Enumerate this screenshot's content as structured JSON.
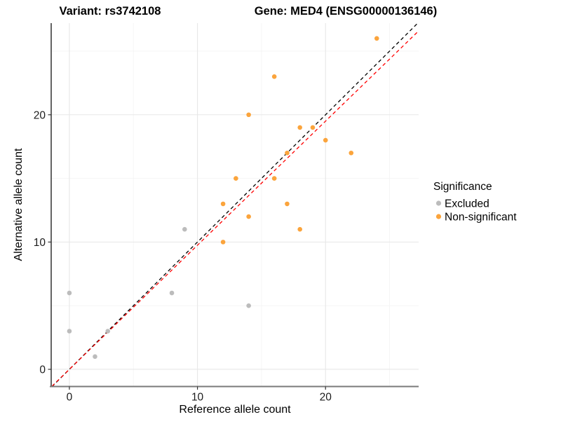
{
  "titles": {
    "variant": "Variant: rs3742108",
    "gene": "Gene: MED4 (ENSG00000136146)"
  },
  "axes": {
    "x_label": "Reference allele count",
    "y_label": "Alternative allele count",
    "x_ticks": [
      0,
      10,
      20
    ],
    "y_ticks": [
      0,
      10,
      20
    ]
  },
  "legend": {
    "title": "Significance",
    "items": [
      {
        "label": "Excluded",
        "color": "#bcbcbc"
      },
      {
        "label": "Non-significant",
        "color": "#fba43c"
      }
    ]
  },
  "chart_data": {
    "type": "scatter",
    "title_left": "Variant: rs3742108",
    "title_right": "Gene: MED4 (ENSG00000136146)",
    "xlabel": "Reference allele count",
    "ylabel": "Alternative allele count",
    "xlim": [
      -1.42,
      27.27
    ],
    "ylim": [
      -1.35,
      27.2
    ],
    "grid": {
      "major": [
        0,
        10,
        20
      ],
      "minor": [
        5,
        15,
        25
      ]
    },
    "point_radius": 3.3,
    "series": [
      {
        "name": "Excluded",
        "color": "#bcbcbc",
        "points": [
          [
            0,
            3
          ],
          [
            0,
            6
          ],
          [
            2,
            1
          ],
          [
            3,
            3
          ],
          [
            8,
            6
          ],
          [
            9,
            11
          ],
          [
            14,
            5
          ]
        ]
      },
      {
        "name": "Non-significant",
        "color": "#fba43c",
        "points": [
          [
            12,
            10
          ],
          [
            12,
            13
          ],
          [
            13,
            15
          ],
          [
            14,
            12
          ],
          [
            14,
            20
          ],
          [
            16,
            15
          ],
          [
            16,
            23
          ],
          [
            17,
            13
          ],
          [
            17,
            17
          ],
          [
            18,
            11
          ],
          [
            18,
            19
          ],
          [
            19,
            19
          ],
          [
            20,
            18
          ],
          [
            22,
            17
          ],
          [
            24,
            26
          ]
        ]
      }
    ],
    "lines": [
      {
        "name": "identity-line",
        "color": "#000000",
        "slope": 1.0,
        "intercept": 0,
        "dash": "5,4"
      },
      {
        "name": "fit-line",
        "color": "#ff0000",
        "slope": 0.975,
        "intercept": 0,
        "dash": "5,4"
      }
    ],
    "legend_position": "right",
    "grid_on": true
  }
}
